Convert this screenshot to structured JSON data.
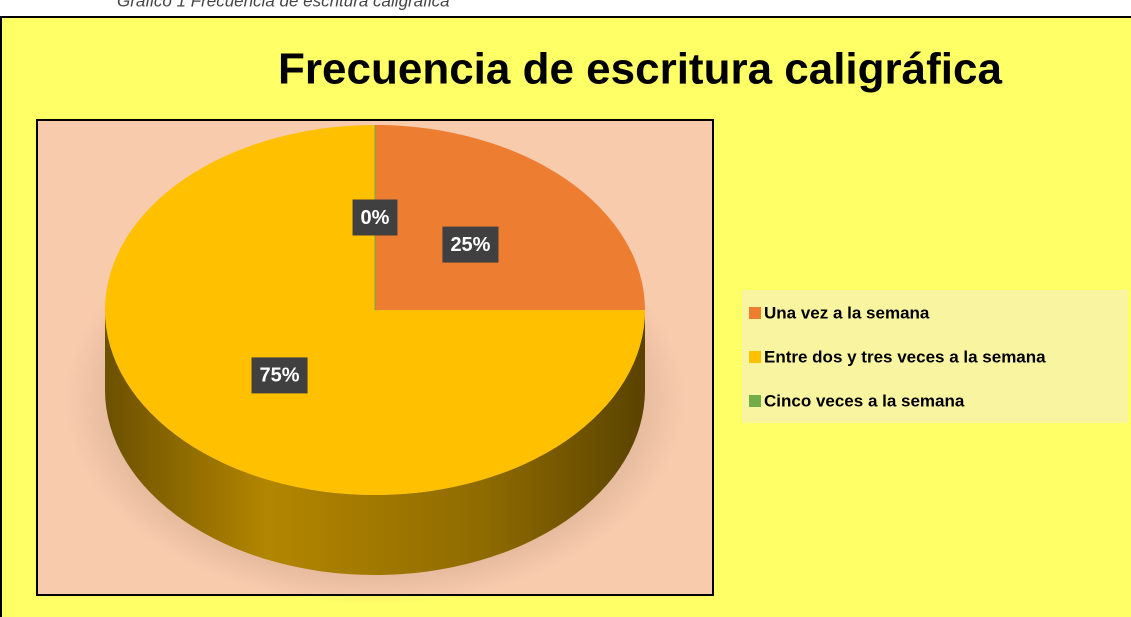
{
  "caption": "Gráfico 1 Frecuencia de escritura caligráfica",
  "chart_data": {
    "type": "pie",
    "title": "Frecuencia de escritura caligráfica",
    "categories": [
      "Una vez a la semana",
      "Entre dos y tres veces a la semana",
      "Cinco veces a la semana"
    ],
    "values": [
      25,
      75,
      0
    ],
    "value_labels": [
      "25%",
      "75%",
      "0%"
    ],
    "colors": [
      "#ed7d31",
      "#ffc000",
      "#70ad47"
    ],
    "legend": "right"
  }
}
